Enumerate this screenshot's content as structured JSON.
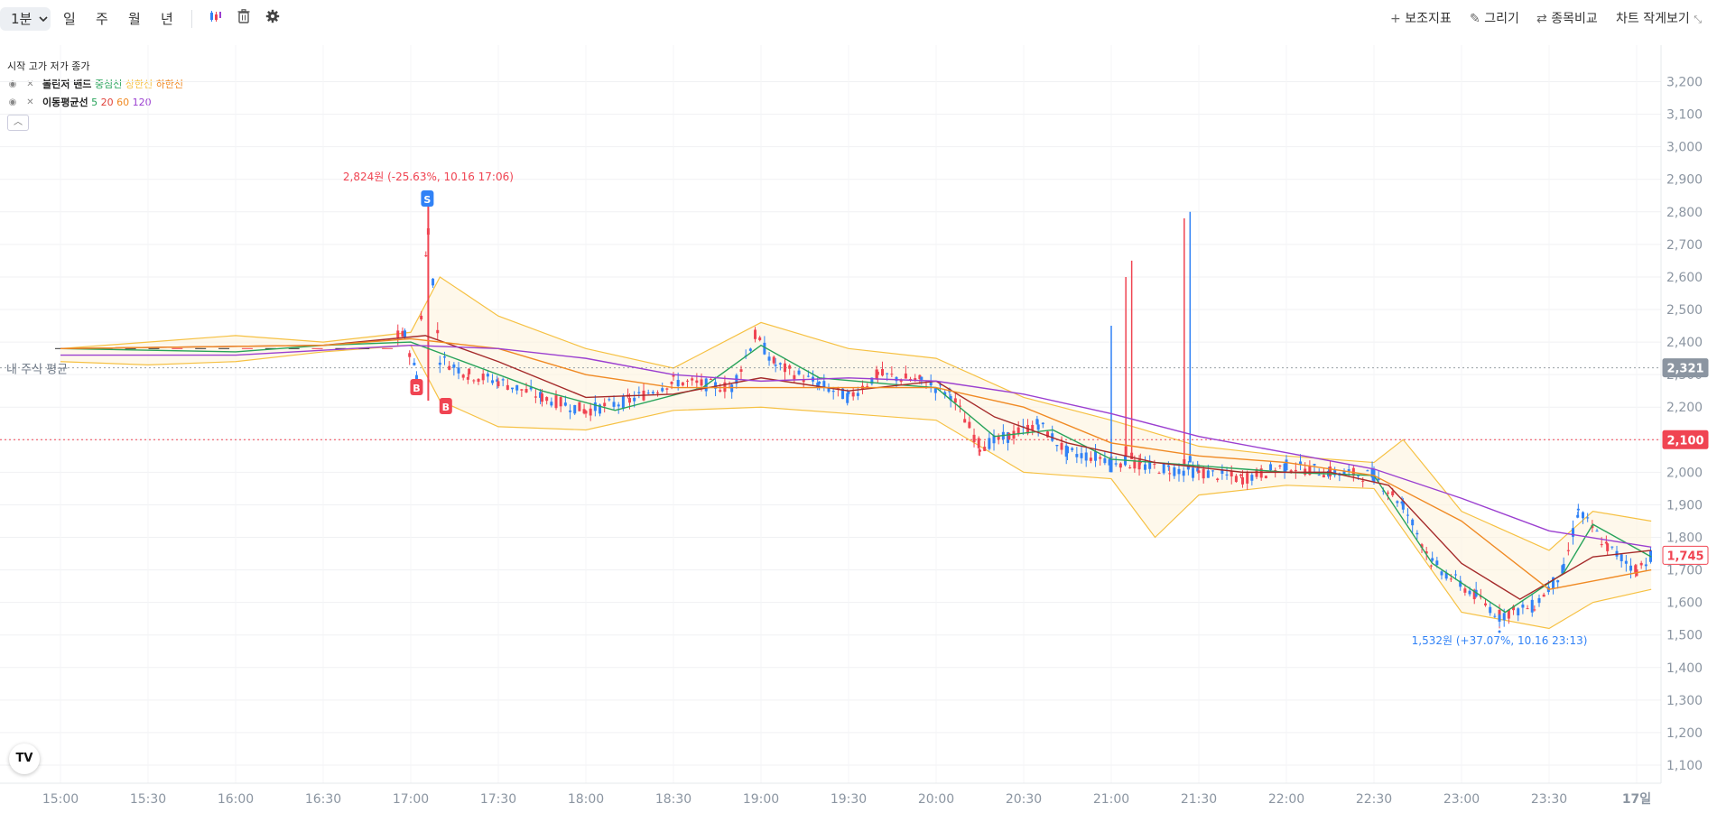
{
  "toolbar": {
    "interval_label": "1분",
    "periods": [
      "일",
      "주",
      "월",
      "년"
    ],
    "indicators_label": "보조지표",
    "draw_label": "그리기",
    "compare_label": "종목비교",
    "small_view_label": "차트 작게보기"
  },
  "legend": {
    "ohlc": "시작 고가 저가 종가",
    "bb_name": "볼린저 밴드",
    "bb_mid": "중심선",
    "bb_upper": "상한선",
    "bb_lower": "하한선",
    "ma_name": "이동평균선",
    "ma_periods": [
      "5",
      "20",
      "60",
      "120"
    ]
  },
  "colors": {
    "up": "#f04452",
    "down": "#3182f6",
    "ma5": "#27a35a",
    "ma20": "#a52a2a",
    "ma60": "#f08a24",
    "ma120": "#9b3fd0",
    "band": "#f6c143",
    "bb_mid": "#27a35a",
    "bb_upper": "#f6c143",
    "bb_lower": "#f08a24"
  },
  "markers": {
    "high_annotation": "2,824원 (-25.63%, 10.16 17:06)",
    "low_annotation": "1,532원 (+37.07%, 10.16 23:13)",
    "sell_badge": "S",
    "buy_badge": "B",
    "avg_label": "내 주식 평균"
  },
  "price_tags": {
    "avg": "2,321",
    "target": "2,100",
    "last": "1,745"
  },
  "logo_text": "TV",
  "chart_data": {
    "type": "candlestick",
    "x_ticks": [
      "15:00",
      "15:30",
      "16:00",
      "16:30",
      "17:00",
      "17:30",
      "18:00",
      "18:30",
      "19:00",
      "19:30",
      "20:00",
      "20:30",
      "21:00",
      "21:30",
      "22:00",
      "22:30",
      "23:00",
      "23:30",
      "17일"
    ],
    "y_ticks": [
      1100,
      1200,
      1300,
      1400,
      1500,
      1600,
      1700,
      1800,
      1900,
      2000,
      2100,
      2200,
      2300,
      2400,
      2500,
      2600,
      2700,
      2800,
      2900,
      3000,
      3100,
      3200
    ],
    "y_tick_labels": [
      "1,100",
      "1,200",
      "1,300",
      "1,400",
      "1,500",
      "1,600",
      "1,700",
      "1,800",
      "1,900",
      "2,000",
      "2,100",
      "2,200",
      "2,300",
      "2,400",
      "2,500",
      "2,600",
      "2,700",
      "2,800",
      "2,900",
      "3,000",
      "3,100",
      "3,200"
    ],
    "ylim": [
      1040,
      3260
    ],
    "avg_price": 2321,
    "target_price": 2100,
    "last_price": 1745,
    "high": {
      "price": 2824,
      "time": "17:06"
    },
    "low": {
      "price": 1532,
      "time": "23:13"
    },
    "price_path": [
      [
        "15:00",
        2380
      ],
      [
        "15:30",
        2380
      ],
      [
        "16:00",
        2380
      ],
      [
        "16:30",
        2400
      ],
      [
        "16:58",
        2420
      ],
      [
        "17:02",
        2300
      ],
      [
        "17:06",
        2750
      ],
      [
        "17:10",
        2350
      ],
      [
        "17:20",
        2300
      ],
      [
        "17:30",
        2280
      ],
      [
        "17:45",
        2230
      ],
      [
        "18:00",
        2190
      ],
      [
        "18:15",
        2220
      ],
      [
        "18:30",
        2280
      ],
      [
        "18:50",
        2260
      ],
      [
        "18:58",
        2420
      ],
      [
        "19:05",
        2330
      ],
      [
        "19:20",
        2270
      ],
      [
        "19:30",
        2230
      ],
      [
        "19:40",
        2300
      ],
      [
        "19:55",
        2280
      ],
      [
        "20:05",
        2240
      ],
      [
        "20:15",
        2080
      ],
      [
        "20:25",
        2110
      ],
      [
        "20:35",
        2150
      ],
      [
        "20:45",
        2060
      ],
      [
        "21:00",
        2040
      ],
      [
        "21:10",
        2020
      ],
      [
        "21:20",
        2010
      ],
      [
        "21:30",
        2000
      ],
      [
        "21:45",
        1980
      ],
      [
        "22:00",
        2020
      ],
      [
        "22:15",
        2000
      ],
      [
        "22:30",
        1990
      ],
      [
        "22:40",
        1900
      ],
      [
        "22:50",
        1720
      ],
      [
        "23:05",
        1620
      ],
      [
        "23:13",
        1560
      ],
      [
        "23:25",
        1590
      ],
      [
        "23:35",
        1700
      ],
      [
        "23:40",
        1880
      ],
      [
        "23:50",
        1770
      ],
      [
        "24:00",
        1700
      ],
      [
        "24:05",
        1745
      ]
    ],
    "spikes": [
      {
        "time": "21:00",
        "open": 2000,
        "high": 2450,
        "close": 2040,
        "dir": "down"
      },
      {
        "time": "21:05",
        "open": 2050,
        "high": 2600,
        "close": 2080,
        "dir": "up"
      },
      {
        "time": "21:07",
        "open": 2040,
        "high": 2650,
        "close": 2060,
        "dir": "up"
      },
      {
        "time": "21:25",
        "open": 2020,
        "high": 2780,
        "close": 2040,
        "dir": "up"
      },
      {
        "time": "21:27",
        "open": 2030,
        "high": 2800,
        "close": 2050,
        "dir": "down"
      }
    ],
    "ma_series": [
      {
        "name": "5",
        "points": [
          [
            "15:00",
            2380
          ],
          [
            "16:00",
            2370
          ],
          [
            "16:30",
            2390
          ],
          [
            "17:00",
            2400
          ],
          [
            "17:15",
            2350
          ],
          [
            "17:45",
            2250
          ],
          [
            "18:10",
            2190
          ],
          [
            "18:40",
            2260
          ],
          [
            "19:00",
            2390
          ],
          [
            "19:20",
            2290
          ],
          [
            "19:45",
            2270
          ],
          [
            "20:00",
            2260
          ],
          [
            "20:20",
            2110
          ],
          [
            "20:40",
            2130
          ],
          [
            "21:00",
            2040
          ],
          [
            "21:30",
            2020
          ],
          [
            "22:00",
            2000
          ],
          [
            "22:30",
            1990
          ],
          [
            "22:50",
            1720
          ],
          [
            "23:15",
            1570
          ],
          [
            "23:35",
            1690
          ],
          [
            "23:45",
            1840
          ],
          [
            "24:05",
            1740
          ]
        ]
      },
      {
        "name": "20",
        "points": [
          [
            "15:00",
            2380
          ],
          [
            "16:30",
            2390
          ],
          [
            "17:05",
            2420
          ],
          [
            "17:30",
            2340
          ],
          [
            "18:00",
            2230
          ],
          [
            "18:30",
            2240
          ],
          [
            "19:00",
            2290
          ],
          [
            "19:30",
            2250
          ],
          [
            "20:00",
            2280
          ],
          [
            "20:20",
            2170
          ],
          [
            "20:45",
            2090
          ],
          [
            "21:15",
            2030
          ],
          [
            "21:45",
            2000
          ],
          [
            "22:15",
            2000
          ],
          [
            "22:35",
            1960
          ],
          [
            "23:00",
            1720
          ],
          [
            "23:20",
            1610
          ],
          [
            "23:45",
            1740
          ],
          [
            "24:05",
            1760
          ]
        ]
      },
      {
        "name": "60",
        "points": [
          [
            "15:00",
            2380
          ],
          [
            "16:30",
            2390
          ],
          [
            "17:00",
            2410
          ],
          [
            "17:30",
            2380
          ],
          [
            "18:00",
            2300
          ],
          [
            "18:30",
            2260
          ],
          [
            "19:00",
            2260
          ],
          [
            "19:30",
            2260
          ],
          [
            "20:00",
            2260
          ],
          [
            "20:30",
            2200
          ],
          [
            "21:00",
            2090
          ],
          [
            "21:30",
            2050
          ],
          [
            "22:00",
            2030
          ],
          [
            "22:30",
            1990
          ],
          [
            "23:00",
            1850
          ],
          [
            "23:30",
            1640
          ],
          [
            "24:05",
            1700
          ]
        ]
      },
      {
        "name": "120",
        "points": [
          [
            "15:00",
            2360
          ],
          [
            "16:00",
            2360
          ],
          [
            "17:00",
            2390
          ],
          [
            "17:30",
            2380
          ],
          [
            "18:00",
            2350
          ],
          [
            "18:30",
            2300
          ],
          [
            "19:00",
            2280
          ],
          [
            "19:30",
            2290
          ],
          [
            "20:00",
            2280
          ],
          [
            "20:30",
            2240
          ],
          [
            "21:00",
            2180
          ],
          [
            "21:30",
            2110
          ],
          [
            "22:00",
            2060
          ],
          [
            "22:30",
            2010
          ],
          [
            "23:00",
            1920
          ],
          [
            "23:30",
            1820
          ],
          [
            "24:05",
            1770
          ]
        ]
      }
    ],
    "band": {
      "upper": [
        [
          "15:00",
          2380
        ],
        [
          "15:30",
          2400
        ],
        [
          "16:00",
          2420
        ],
        [
          "16:30",
          2400
        ],
        [
          "17:00",
          2430
        ],
        [
          "17:10",
          2600
        ],
        [
          "17:30",
          2480
        ],
        [
          "18:00",
          2380
        ],
        [
          "18:30",
          2320
        ],
        [
          "19:00",
          2460
        ],
        [
          "19:30",
          2380
        ],
        [
          "20:00",
          2350
        ],
        [
          "20:30",
          2230
        ],
        [
          "21:00",
          2160
        ],
        [
          "21:30",
          2080
        ],
        [
          "22:00",
          2050
        ],
        [
          "22:30",
          2030
        ],
        [
          "22:40",
          2100
        ],
        [
          "23:00",
          1880
        ],
        [
          "23:30",
          1760
        ],
        [
          "23:45",
          1880
        ],
        [
          "24:05",
          1850
        ]
      ],
      "lower": [
        [
          "15:00",
          2340
        ],
        [
          "15:30",
          2330
        ],
        [
          "16:00",
          2340
        ],
        [
          "16:30",
          2370
        ],
        [
          "17:00",
          2390
        ],
        [
          "17:10",
          2220
        ],
        [
          "17:30",
          2140
        ],
        [
          "18:00",
          2130
        ],
        [
          "18:30",
          2190
        ],
        [
          "19:00",
          2200
        ],
        [
          "19:30",
          2180
        ],
        [
          "20:00",
          2160
        ],
        [
          "20:30",
          2000
        ],
        [
          "21:00",
          1980
        ],
        [
          "21:15",
          1800
        ],
        [
          "21:30",
          1930
        ],
        [
          "22:00",
          1960
        ],
        [
          "22:30",
          1950
        ],
        [
          "23:00",
          1570
        ],
        [
          "23:30",
          1520
        ],
        [
          "23:45",
          1600
        ],
        [
          "24:05",
          1640
        ]
      ]
    }
  }
}
